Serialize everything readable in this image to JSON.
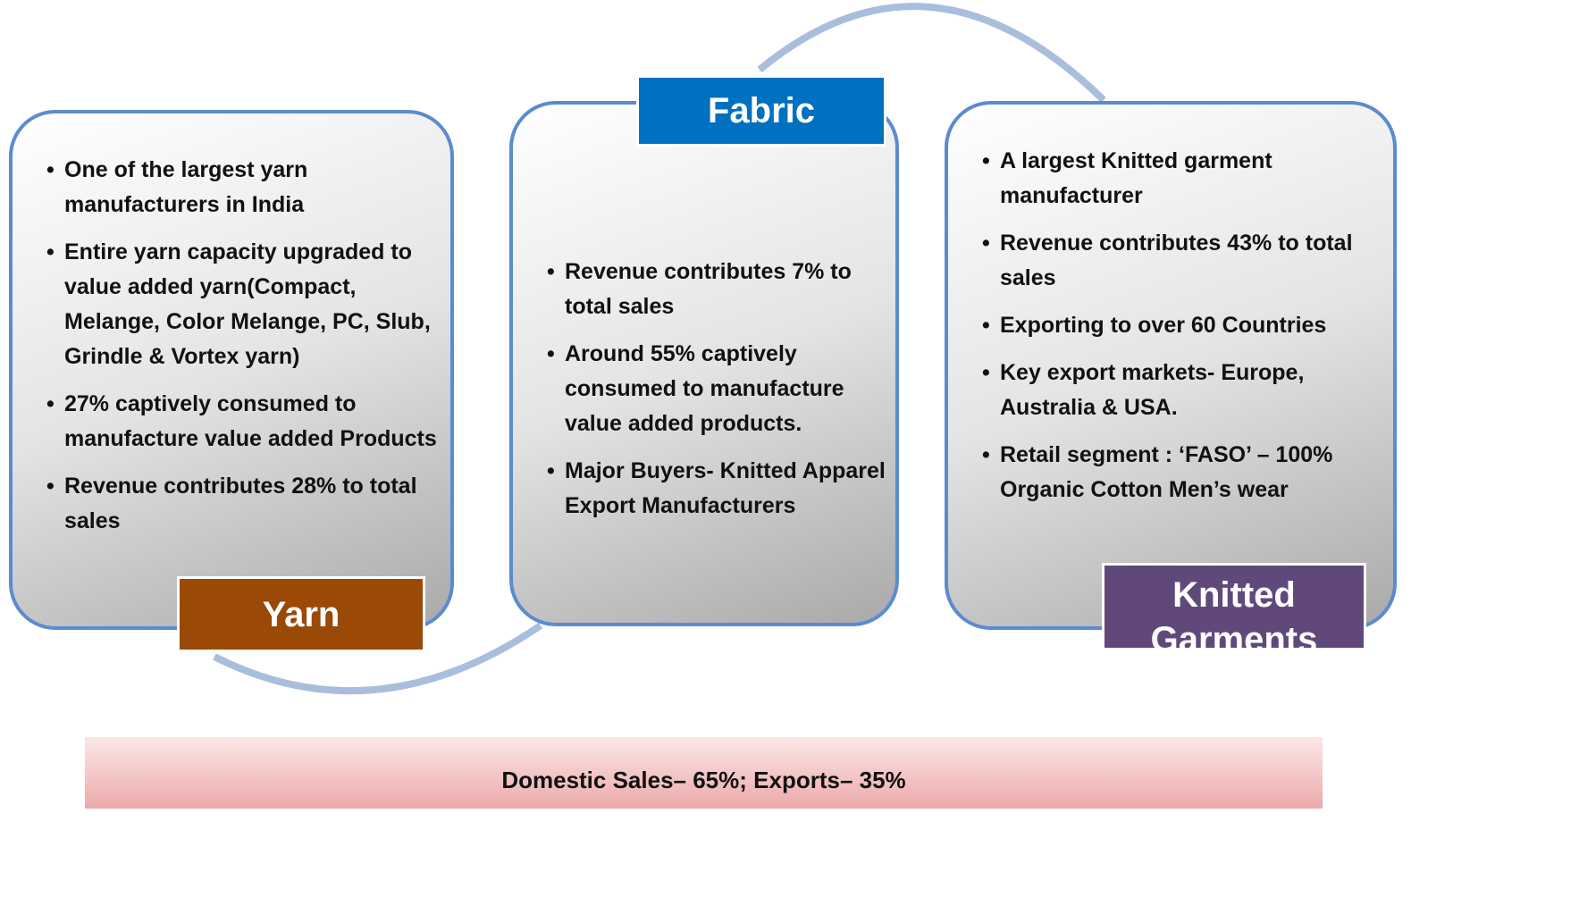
{
  "panels": [
    {
      "label": "Yarn",
      "bullets": [
        "One of the largest yarn manufacturers in India",
        "Entire yarn capacity upgraded to value added yarn(Compact, Melange, Color Melange, PC, Slub, Grindle & Vortex yarn)",
        "27% captively consumed to manufacture value added Products",
        "Revenue contributes 28% to total sales"
      ]
    },
    {
      "label": "Fabric",
      "bullets": [
        "Revenue contributes 7% to total sales",
        "Around 55% captively consumed to manufacture value added products.",
        "Major Buyers- Knitted Apparel Export Manufacturers"
      ]
    },
    {
      "label": "Knitted Garments",
      "bullets": [
        "A largest Knitted garment manufacturer",
        "Revenue contributes 43% to total sales",
        "Exporting to over 60 Countries",
        "Key export markets- Europe, Australia & USA.",
        "Retail segment : ‘FASO’ – 100% Organic Cotton Men’s wear"
      ]
    }
  ],
  "footer": "Domestic Sales– 65%; Exports– 35%"
}
